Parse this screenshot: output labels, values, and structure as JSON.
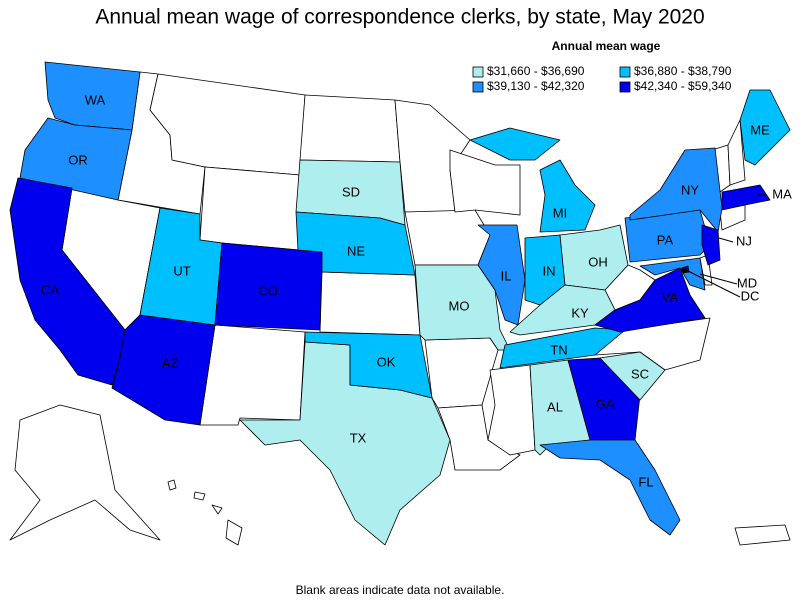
{
  "title": "Annual mean wage of correspondence clerks, by state, May 2020",
  "legend": {
    "title": "Annual mean wage",
    "items": [
      {
        "label": "$31,660 - $36,690",
        "color": "#aeeeee"
      },
      {
        "label": "$36,880 - $38,790",
        "color": "#00bfff"
      },
      {
        "label": "$39,130 - $42,320",
        "color": "#1e8fff"
      },
      {
        "label": "$42,340 - $59,340",
        "color": "#0000ee"
      }
    ]
  },
  "states": [
    {
      "label": "WA",
      "color": "#1e8fff"
    },
    {
      "label": "OR",
      "color": "#1e8fff"
    },
    {
      "label": "CA",
      "color": "#0000ee"
    },
    {
      "label": "AZ",
      "color": "#0000ee"
    },
    {
      "label": "UT",
      "color": "#00bfff"
    },
    {
      "label": "CO",
      "color": "#0000ee"
    },
    {
      "label": "SD",
      "color": "#aeeeee"
    },
    {
      "label": "NE",
      "color": "#00bfff"
    },
    {
      "label": "TX",
      "color": "#aeeeee"
    },
    {
      "label": "OK",
      "color": "#00bfff"
    },
    {
      "label": "MO",
      "color": "#aeeeee"
    },
    {
      "label": "IL",
      "color": "#1e8fff"
    },
    {
      "label": "IN",
      "color": "#00bfff"
    },
    {
      "label": "MI",
      "color": "#00bfff"
    },
    {
      "label": "OH",
      "color": "#aeeeee"
    },
    {
      "label": "KY",
      "color": "#aeeeee"
    },
    {
      "label": "TN",
      "color": "#00bfff"
    },
    {
      "label": "AL",
      "color": "#aeeeee"
    },
    {
      "label": "GA",
      "color": "#0000ee"
    },
    {
      "label": "SC",
      "color": "#aeeeee"
    },
    {
      "label": "FL",
      "color": "#1e8fff"
    },
    {
      "label": "VA",
      "color": "#0000ee"
    },
    {
      "label": "PA",
      "color": "#1e8fff"
    },
    {
      "label": "NY",
      "color": "#1e8fff"
    },
    {
      "label": "ME",
      "color": "#00bfff"
    },
    {
      "label": "MA",
      "color": "#0000ee"
    },
    {
      "label": "NJ",
      "color": "#0000ee"
    },
    {
      "label": "MD",
      "color": "#1e8fff"
    },
    {
      "label": "DC",
      "color": "#0000ee"
    }
  ],
  "footnote": "Blank areas indicate data not available."
}
